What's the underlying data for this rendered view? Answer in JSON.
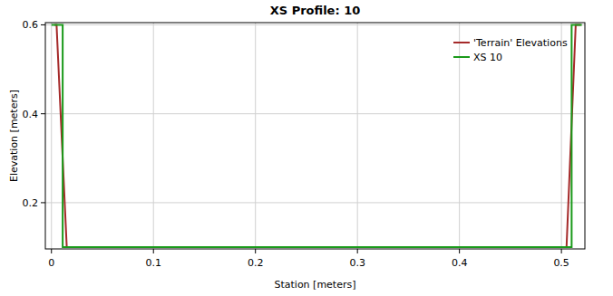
{
  "chart_data": {
    "type": "line",
    "title": "XS Profile: 10",
    "x_label": "Station [meters]",
    "y_label": "Elevation [meters]",
    "series": [
      {
        "name": "'Terrain' Elevations",
        "color": "#a52a2a",
        "x": [
          0.003,
          0.005,
          0.015,
          0.505,
          0.514,
          0.519
        ],
        "values": [
          0.6,
          0.6,
          0.1,
          0.1,
          0.6,
          0.6
        ]
      },
      {
        "name": "XS 10",
        "color": "#1a9a1a",
        "x": [
          0.0,
          0.011,
          0.011,
          0.51,
          0.51,
          0.52
        ],
        "values": [
          0.6,
          0.6,
          0.1,
          0.1,
          0.6,
          0.6
        ]
      }
    ],
    "xlim": [
      -0.006,
      0.523
    ],
    "ylim": [
      0.096,
      0.605
    ],
    "xticks": [
      0,
      0.1,
      0.2,
      0.3,
      0.4,
      0.5
    ],
    "yticks": [
      0.2,
      0.4,
      0.6
    ],
    "grid": true,
    "legend": "upper right"
  }
}
